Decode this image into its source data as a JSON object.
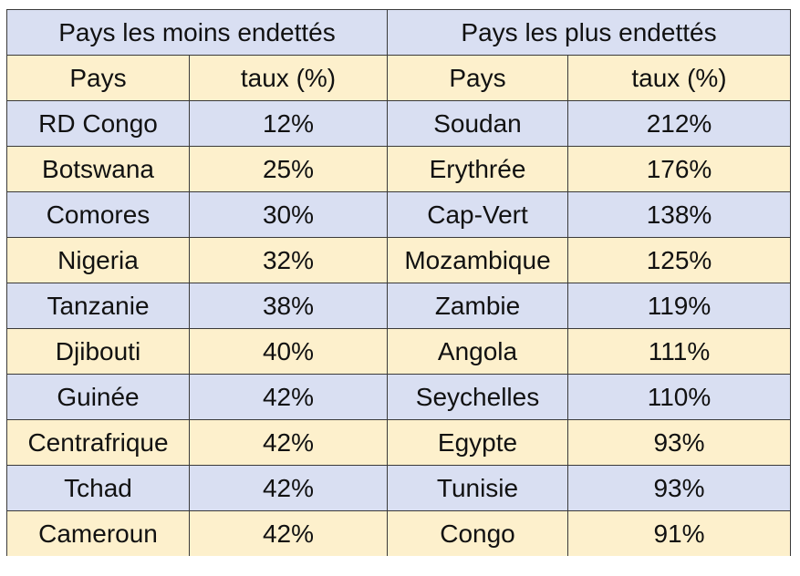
{
  "colors": {
    "row_blue": "#d9dff2",
    "row_cream": "#fdf0cc",
    "border": "#3a3a3a",
    "text": "#111111"
  },
  "chart_data": {
    "type": "table",
    "groups": [
      "Pays les moins endettés",
      "Pays les plus endettés"
    ],
    "columns": [
      "Pays",
      "taux (%)",
      "Pays",
      "taux (%)"
    ],
    "least_indebted": [
      {
        "pays": "RD Congo",
        "taux": "12%"
      },
      {
        "pays": "Botswana",
        "taux": "25%"
      },
      {
        "pays": "Comores",
        "taux": "30%"
      },
      {
        "pays": "Nigeria",
        "taux": "32%"
      },
      {
        "pays": "Tanzanie",
        "taux": "38%"
      },
      {
        "pays": "Djibouti",
        "taux": "40%"
      },
      {
        "pays": "Guinée",
        "taux": "42%"
      },
      {
        "pays": "Centrafrique",
        "taux": "42%"
      },
      {
        "pays": "Tchad",
        "taux": "42%"
      },
      {
        "pays": "Cameroun",
        "taux": "42%"
      }
    ],
    "most_indebted": [
      {
        "pays": "Soudan",
        "taux": "212%"
      },
      {
        "pays": "Erythrée",
        "taux": "176%"
      },
      {
        "pays": "Cap-Vert",
        "taux": "138%"
      },
      {
        "pays": "Mozambique",
        "taux": "125%"
      },
      {
        "pays": "Zambie",
        "taux": "119%"
      },
      {
        "pays": "Angola",
        "taux": "111%"
      },
      {
        "pays": "Seychelles",
        "taux": "110%"
      },
      {
        "pays": "Egypte",
        "taux": "93%"
      },
      {
        "pays": "Tunisie",
        "taux": "93%"
      },
      {
        "pays": "Congo",
        "taux": "91%"
      }
    ]
  }
}
